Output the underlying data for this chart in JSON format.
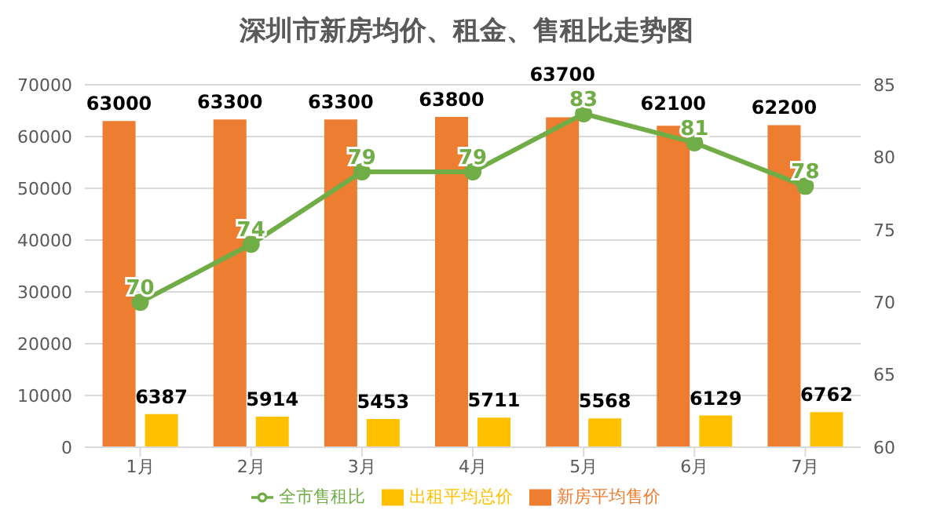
{
  "chart_data": {
    "type": "bar",
    "title": "深圳市新房均价、租金、售租比走势图",
    "categories": [
      "1月",
      "2月",
      "3月",
      "4月",
      "5月",
      "6月",
      "7月"
    ],
    "series": [
      {
        "name": "新房平均售价",
        "color": "#ed7d31",
        "values": [
          63000,
          63300,
          63300,
          63800,
          63700,
          62100,
          62200
        ]
      },
      {
        "name": "出租平均总价",
        "color": "#ffc000",
        "values": [
          6387,
          5914,
          5453,
          5711,
          5568,
          6129,
          6762
        ]
      },
      {
        "name": "全市售租比",
        "type": "line",
        "axis": "y2",
        "color": "#70ad47",
        "marker": "circle",
        "values": [
          70,
          74,
          79,
          79,
          83,
          81,
          78
        ]
      }
    ],
    "ylim": [
      0,
      70000
    ],
    "yticks": [
      0,
      10000,
      20000,
      30000,
      40000,
      50000,
      60000,
      70000
    ],
    "y2lim": [
      60,
      85
    ],
    "y2ticks": [
      60,
      65,
      70,
      75,
      80,
      85
    ],
    "grid": "y",
    "legend": "bottom",
    "data_labels": true
  }
}
